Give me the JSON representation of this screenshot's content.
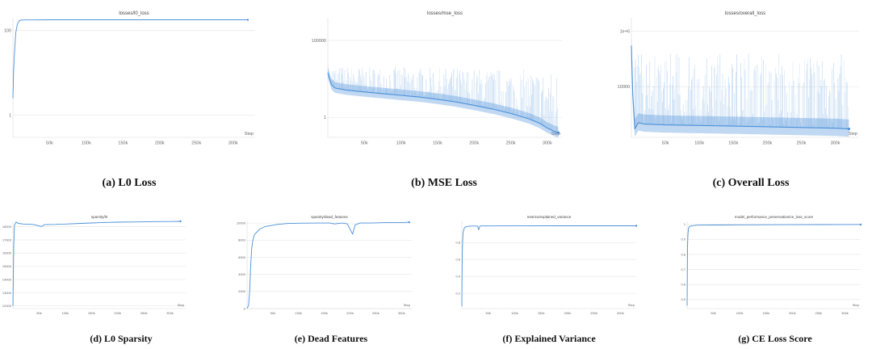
{
  "captions": [
    "(a) L0 Loss",
    "(b) MSE Loss",
    "(c) Overall Loss",
    "(d) L0 Sparsity",
    "(e) Dead Features",
    "(f) Explained Variance",
    "(g) CE Loss Score"
  ],
  "chart_data": [
    {
      "id": "a",
      "type": "line",
      "title": "losses/l0_loss",
      "xlabel": "Step",
      "yscale": "log",
      "xlim": [
        0,
        330000
      ],
      "ylim": [
        0.3,
        200
      ],
      "xticks": [
        50000,
        100000,
        150000,
        200000,
        250000,
        300000
      ],
      "xticklabels": [
        "50k",
        "100k",
        "150k",
        "200k",
        "250k",
        "300k"
      ],
      "yticks": [
        1,
        100
      ],
      "yticklabels": [
        "1",
        "100"
      ],
      "color": "#4a90d9",
      "series": [
        {
          "x": [
            0,
            1000,
            2500,
            4000,
            6000,
            8000,
            10000,
            15000,
            25000,
            50000,
            100000,
            150000,
            200000,
            250000,
            300000,
            320000
          ],
          "y": [
            2.5,
            12,
            40,
            90,
            140,
            165,
            175,
            178,
            178,
            179,
            179,
            179,
            179,
            179,
            179,
            179
          ]
        }
      ]
    },
    {
      "id": "b",
      "type": "line",
      "title": "losses/mse_loss",
      "xlabel": "Step",
      "yscale": "log",
      "xlim": [
        0,
        320000
      ],
      "ylim": [
        0.05,
        3000000
      ],
      "xticks": [
        50000,
        100000,
        150000,
        200000,
        250000,
        300000
      ],
      "xticklabels": [
        "50k",
        "100k",
        "150k",
        "200k",
        "250k",
        "300k"
      ],
      "yticks": [
        1,
        100000
      ],
      "yticklabels": [
        "1",
        "100000"
      ],
      "color": "#4a90d9",
      "series": [
        {
          "x": [
            0,
            5000,
            10000,
            25000,
            50000,
            75000,
            100000,
            125000,
            150000,
            175000,
            200000,
            225000,
            250000,
            275000,
            290000,
            300000,
            310000,
            315000
          ],
          "y": [
            800,
            130,
            80,
            60,
            45,
            35,
            27,
            21,
            15,
            10,
            6,
            3.5,
            1.8,
            0.8,
            0.4,
            0.2,
            0.12,
            0.1
          ]
        }
      ]
    },
    {
      "id": "c",
      "type": "line",
      "title": "losses/overall_loss",
      "xlabel": "Step",
      "yscale": "log",
      "xlim": [
        0,
        335000
      ],
      "ylim": [
        150,
        3000000
      ],
      "xticks": [
        50000,
        100000,
        150000,
        200000,
        250000,
        300000
      ],
      "xticklabels": [
        "50k",
        "100k",
        "150k",
        "200k",
        "250k",
        "300k"
      ],
      "yticks": [
        10000,
        1000000
      ],
      "yticklabels": [
        "10000",
        "1e+6"
      ],
      "color": "#4a90d9",
      "series": [
        {
          "x": [
            0,
            2000,
            5000,
            10000,
            20000,
            50000,
            100000,
            150000,
            200000,
            250000,
            300000,
            320000
          ],
          "y": [
            300000,
            5000,
            300,
            500,
            450,
            420,
            400,
            380,
            360,
            340,
            320,
            300
          ]
        }
      ]
    },
    {
      "id": "d",
      "type": "line",
      "title": "sparsity/l0",
      "xlabel": "Step",
      "xlim": [
        0,
        330000
      ],
      "ylim": [
        11800,
        18400
      ],
      "xticks": [
        50000,
        100000,
        150000,
        200000,
        250000,
        300000
      ],
      "xticklabels": [
        "50k",
        "100k",
        "150k",
        "200k",
        "250k",
        "300k"
      ],
      "yticks": [
        12000,
        13000,
        14000,
        15000,
        16000,
        17000,
        18000
      ],
      "yticklabels": [
        "12000",
        "13000",
        "14000",
        "15000",
        "16000",
        "17000",
        "18000"
      ],
      "color": "#4a90d9",
      "series": [
        {
          "x": [
            0,
            1500,
            3000,
            6000,
            10000,
            20000,
            30000,
            40000,
            50000,
            55000,
            60000,
            70000,
            80000,
            90000,
            100000,
            130000,
            150000,
            180000,
            200000,
            240000,
            270000,
            300000,
            320000
          ],
          "y": [
            12000,
            16500,
            18100,
            18350,
            18250,
            18200,
            18180,
            18160,
            18050,
            18020,
            18150,
            18160,
            18170,
            18190,
            18200,
            18250,
            18280,
            18320,
            18340,
            18360,
            18380,
            18390,
            18400
          ]
        }
      ]
    },
    {
      "id": "e",
      "type": "line",
      "title": "sparsity/dead_features",
      "xlabel": "Step",
      "xlim": [
        0,
        320000
      ],
      "ylim": [
        0,
        10200
      ],
      "xticks": [
        50000,
        100000,
        150000,
        200000,
        250000,
        300000
      ],
      "xticklabels": [
        "50k",
        "100k",
        "150k",
        "200k",
        "250k",
        "300k"
      ],
      "yticks": [
        0,
        2000,
        4000,
        6000,
        8000,
        10000
      ],
      "yticklabels": [
        "0",
        "2000",
        "4000",
        "6000",
        "8000",
        "10000"
      ],
      "color": "#4a90d9",
      "series": [
        {
          "x": [
            0,
            3000,
            5000,
            7000,
            9000,
            11000,
            14000,
            18000,
            25000,
            35000,
            45000,
            60000,
            80000,
            100000,
            120000,
            140000,
            160000,
            170000,
            185000,
            195000,
            200000,
            205000,
            210000,
            220000,
            240000,
            270000,
            300000,
            315000
          ],
          "y": [
            0,
            400,
            2000,
            5000,
            7000,
            7900,
            8600,
            8900,
            9300,
            9600,
            9700,
            9850,
            9950,
            9980,
            9990,
            10000,
            10000,
            9900,
            10000,
            9900,
            9300,
            8700,
            9800,
            10000,
            10000,
            10050,
            10050,
            10100
          ]
        }
      ]
    },
    {
      "id": "f",
      "type": "line",
      "title": "metrics/explained_variance",
      "xlabel": "Step",
      "xlim": [
        0,
        330000
      ],
      "ylim": [
        0.02,
        1.05
      ],
      "xticks": [
        50000,
        100000,
        150000,
        200000,
        250000,
        300000
      ],
      "xticklabels": [
        "50k",
        "100k",
        "150k",
        "200k",
        "250k",
        "300k"
      ],
      "yticks": [
        0.2,
        0.4,
        0.6,
        0.8
      ],
      "yticklabels": [
        "0.2",
        "0.4",
        "0.6",
        "0.8"
      ],
      "color": "#4a90d9",
      "series": [
        {
          "x": [
            0,
            300,
            800,
            1500,
            2500,
            4000,
            6000,
            10000,
            20000,
            30000,
            32000,
            34000,
            40000,
            100000,
            200000,
            300000,
            330000
          ],
          "y": [
            0.05,
            0.35,
            0.65,
            0.82,
            0.92,
            0.96,
            0.98,
            0.99,
            0.995,
            0.995,
            0.95,
            0.995,
            0.996,
            0.997,
            0.998,
            0.998,
            0.998
          ]
        }
      ]
    },
    {
      "id": "g",
      "type": "line",
      "title": "model_performance_preservation/ce_loss_score",
      "xlabel": "Step",
      "xlim": [
        0,
        330000
      ],
      "ylim": [
        0.44,
        1.02
      ],
      "xticks": [
        50000,
        100000,
        150000,
        200000,
        250000,
        300000
      ],
      "xticklabels": [
        "50k",
        "100k",
        "150k",
        "200k",
        "250k",
        "300k"
      ],
      "yticks": [
        0.5,
        0.6,
        0.7,
        0.8,
        0.9,
        1
      ],
      "yticklabels": [
        "0.5",
        "0.6",
        "0.7",
        "0.8",
        "0.9",
        "1"
      ],
      "color": "#4a90d9",
      "series": [
        {
          "x": [
            0,
            400,
            800,
            1500,
            2500,
            4000,
            8000,
            20000,
            100000,
            200000,
            300000,
            330000
          ],
          "y": [
            0.46,
            0.7,
            0.85,
            0.93,
            0.97,
            0.985,
            0.99,
            0.995,
            0.997,
            0.998,
            0.999,
            0.999
          ]
        }
      ]
    }
  ]
}
